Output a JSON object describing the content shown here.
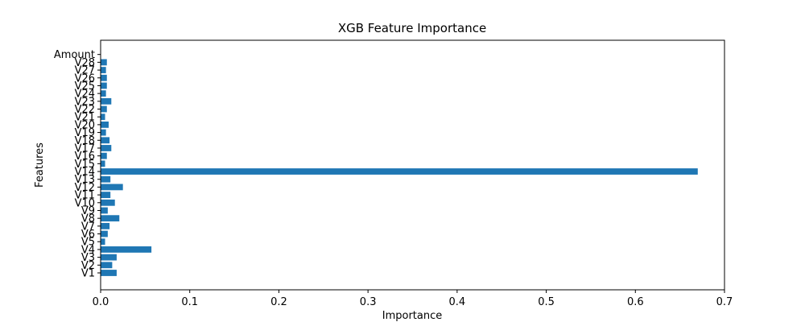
{
  "chart_data": {
    "type": "bar",
    "orientation": "horizontal",
    "title": "XGB Feature Importance",
    "xlabel": "Importance",
    "ylabel": "Features",
    "xlim": [
      0.0,
      0.7
    ],
    "xticks": [
      "0.0",
      "0.1",
      "0.2",
      "0.3",
      "0.4",
      "0.5",
      "0.6",
      "0.7"
    ],
    "color": "#1f77b4",
    "grid": false,
    "categories": [
      "V1",
      "V2",
      "V3",
      "V4",
      "V5",
      "V6",
      "V7",
      "V8",
      "V9",
      "V10",
      "V11",
      "V12",
      "V13",
      "V14",
      "V15",
      "V16",
      "V17",
      "V18",
      "V19",
      "V20",
      "V21",
      "V22",
      "V23",
      "V24",
      "V25",
      "V26",
      "V27",
      "V28",
      "Amount"
    ],
    "values": [
      0.018,
      0.013,
      0.018,
      0.057,
      0.005,
      0.008,
      0.01,
      0.021,
      0.008,
      0.016,
      0.011,
      0.025,
      0.011,
      0.67,
      0.005,
      0.007,
      0.012,
      0.01,
      0.006,
      0.009,
      0.005,
      0.007,
      0.012,
      0.006,
      0.007,
      0.007,
      0.006,
      0.007,
      0.0
    ]
  }
}
